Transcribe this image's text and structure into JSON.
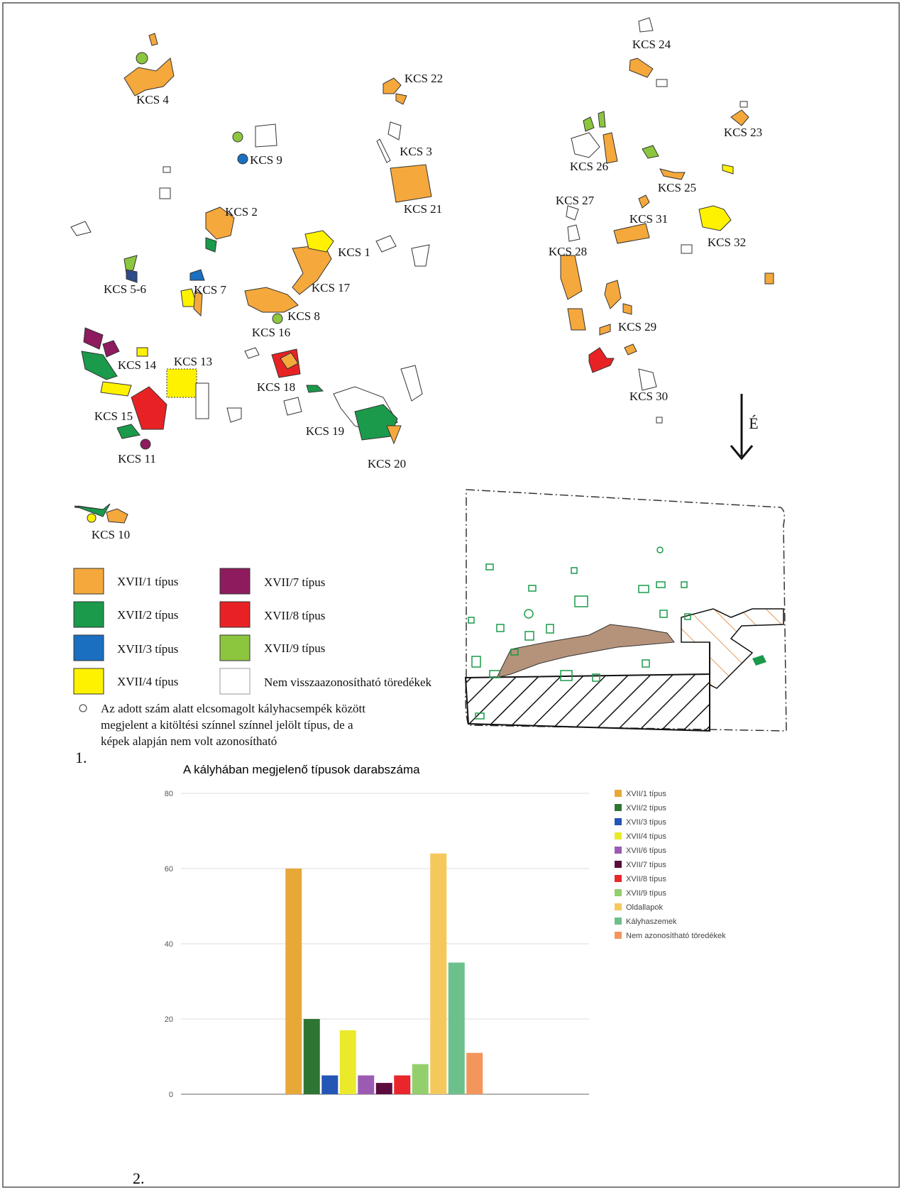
{
  "map": {
    "labels": [
      "KCS 4",
      "KCS 22",
      "KCS 24",
      "KCS 23",
      "KCS 9",
      "KCS 3",
      "KCS 26",
      "KCS 25",
      "KCS 21",
      "KCS 2",
      "KCS 27",
      "KCS 31",
      "KCS 32",
      "KCS 1",
      "KCS 28",
      "KCS 5-6",
      "KCS 7",
      "KCS 17",
      "KCS 8",
      "KCS 16",
      "KCS 29",
      "KCS 13",
      "KCS 14",
      "KCS 18",
      "KCS 30",
      "KCS 15",
      "KCS 19",
      "KCS 11",
      "KCS 20",
      "KCS 10"
    ],
    "north": "É",
    "legend": [
      "XVII/1 típus",
      "XVII/2 típus",
      "XVII/3 típus",
      "XVII/4 típus",
      "XVII/7 típus",
      "XVII/8 típus",
      "XVII/9 típus",
      "Nem visszaazonosítható töredékek"
    ],
    "note": [
      "Az adott szám alatt elcsomagolt kályhacsempék között",
      "megjelent a kitöltési színnel színnel jelölt típus, de a",
      "képek alapján nem volt azonosítható"
    ],
    "panel": "1."
  },
  "panel2": "2.",
  "chart_data": {
    "type": "bar",
    "title": "A kályhában megjelenő típusok darabszáma",
    "categories": [
      null
    ],
    "series": [
      {
        "name": "XVII/1 típus",
        "color": "#e8a838",
        "values": [
          60
        ]
      },
      {
        "name": "XVII/2 típus",
        "color": "#2e7534",
        "values": [
          20
        ]
      },
      {
        "name": "XVII/3 típus",
        "color": "#2456b5",
        "values": [
          5
        ]
      },
      {
        "name": "XVII/4 típus",
        "color": "#eaea2a",
        "values": [
          17
        ]
      },
      {
        "name": "XVII/6 típus",
        "color": "#9b5bb3",
        "values": [
          5
        ]
      },
      {
        "name": "XVII/7 típus",
        "color": "#5a0c3c",
        "values": [
          3
        ]
      },
      {
        "name": "XVII/8 típus",
        "color": "#e8262c",
        "values": [
          5
        ]
      },
      {
        "name": "XVII/9 típus",
        "color": "#93cf6c",
        "values": [
          8
        ]
      },
      {
        "name": "Oldallapok",
        "color": "#f5c85c",
        "values": [
          64
        ]
      },
      {
        "name": "Kályhaszemek",
        "color": "#6cc08c",
        "values": [
          35
        ]
      },
      {
        "name": "Nem azonosítható töredékek",
        "color": "#f4955c",
        "values": [
          11
        ]
      }
    ],
    "ylim": [
      0,
      80
    ],
    "yticks": [
      0,
      20,
      40,
      60,
      80
    ],
    "grid": true
  }
}
